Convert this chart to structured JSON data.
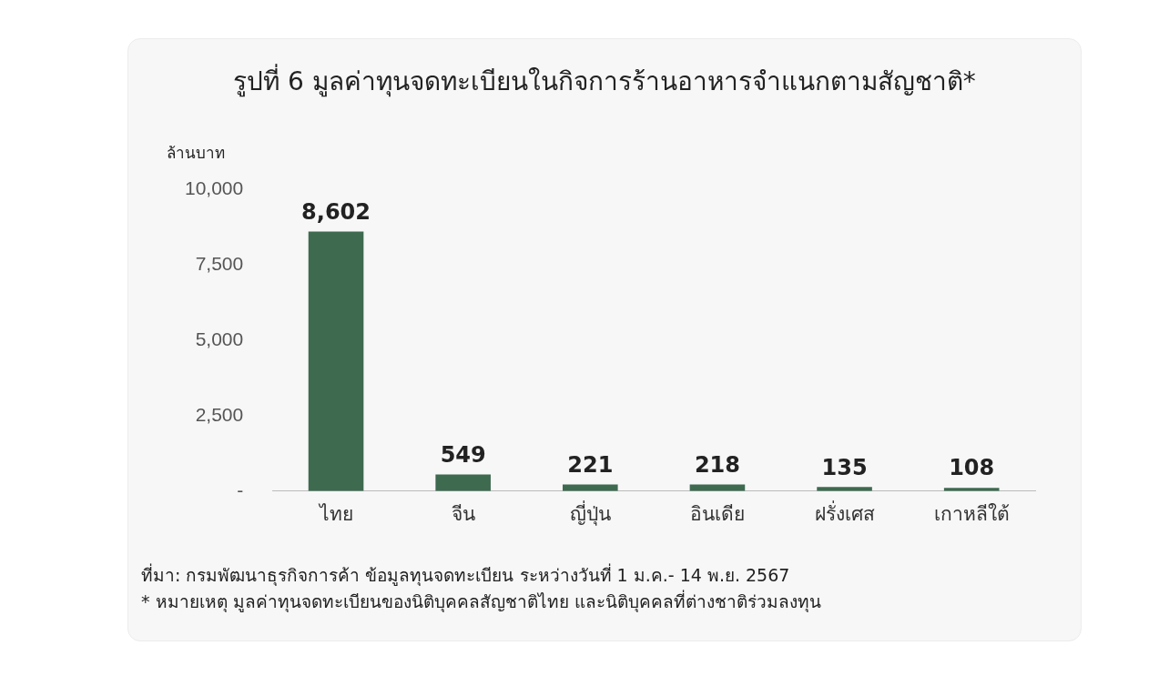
{
  "chart_data": {
    "type": "bar",
    "title": "รูปที่  6 มูลค่าทุนจดทะเบียนในกิจการร้านอาหารจำแนกตามสัญชาติ*",
    "ylabel": "ล้านบาท",
    "categories": [
      "ไทย",
      "จีน",
      "ญี่ปุ่น",
      "อินเดีย",
      "ฝรั่งเศส",
      "เกาหลีใต้"
    ],
    "values": [
      8602,
      549,
      221,
      218,
      135,
      108
    ],
    "color": "#3e6a50",
    "ylim": [
      0,
      10000
    ],
    "yticks": [
      {
        "value": 0,
        "label": "-"
      },
      {
        "value": 2500,
        "label": "2,500"
      },
      {
        "value": 5000,
        "label": "5,000"
      },
      {
        "value": 7500,
        "label": "7,500"
      },
      {
        "value": 10000,
        "label": "10,000"
      }
    ],
    "grid": false,
    "legend": false,
    "value_labels": [
      "8,602",
      "549",
      "221",
      "218",
      "135",
      "108"
    ],
    "annotations": [
      "ที่มา:  กรมพัฒนาธุรกิจการค้า ข้อมูลทุนจดทะเบียน ระหว่างวันที่ 1 ม.ค.- 14 พ.ย. 2567",
      "* หมายเหตุ มูลค่าทุนจดทะเบียนของนิติบุคคลสัญชาติไทย และนิติบุคคลที่ต่างชาติร่วมลงทุน"
    ]
  }
}
